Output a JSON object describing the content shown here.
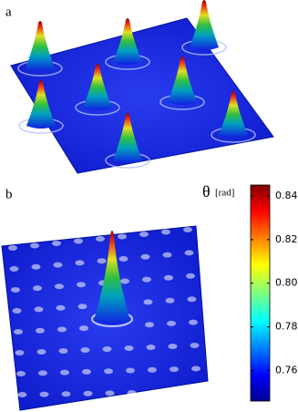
{
  "panels": [
    {
      "label": "a"
    },
    {
      "label": "b"
    }
  ],
  "colorbar": {
    "title": "θ",
    "unit": "[rad]",
    "lim": [
      0.746,
      0.845
    ],
    "ticks": [
      0.76,
      0.78,
      {
        "value": 0.8,
        "label": "0.80"
      },
      0.82,
      0.84
    ]
  }
}
